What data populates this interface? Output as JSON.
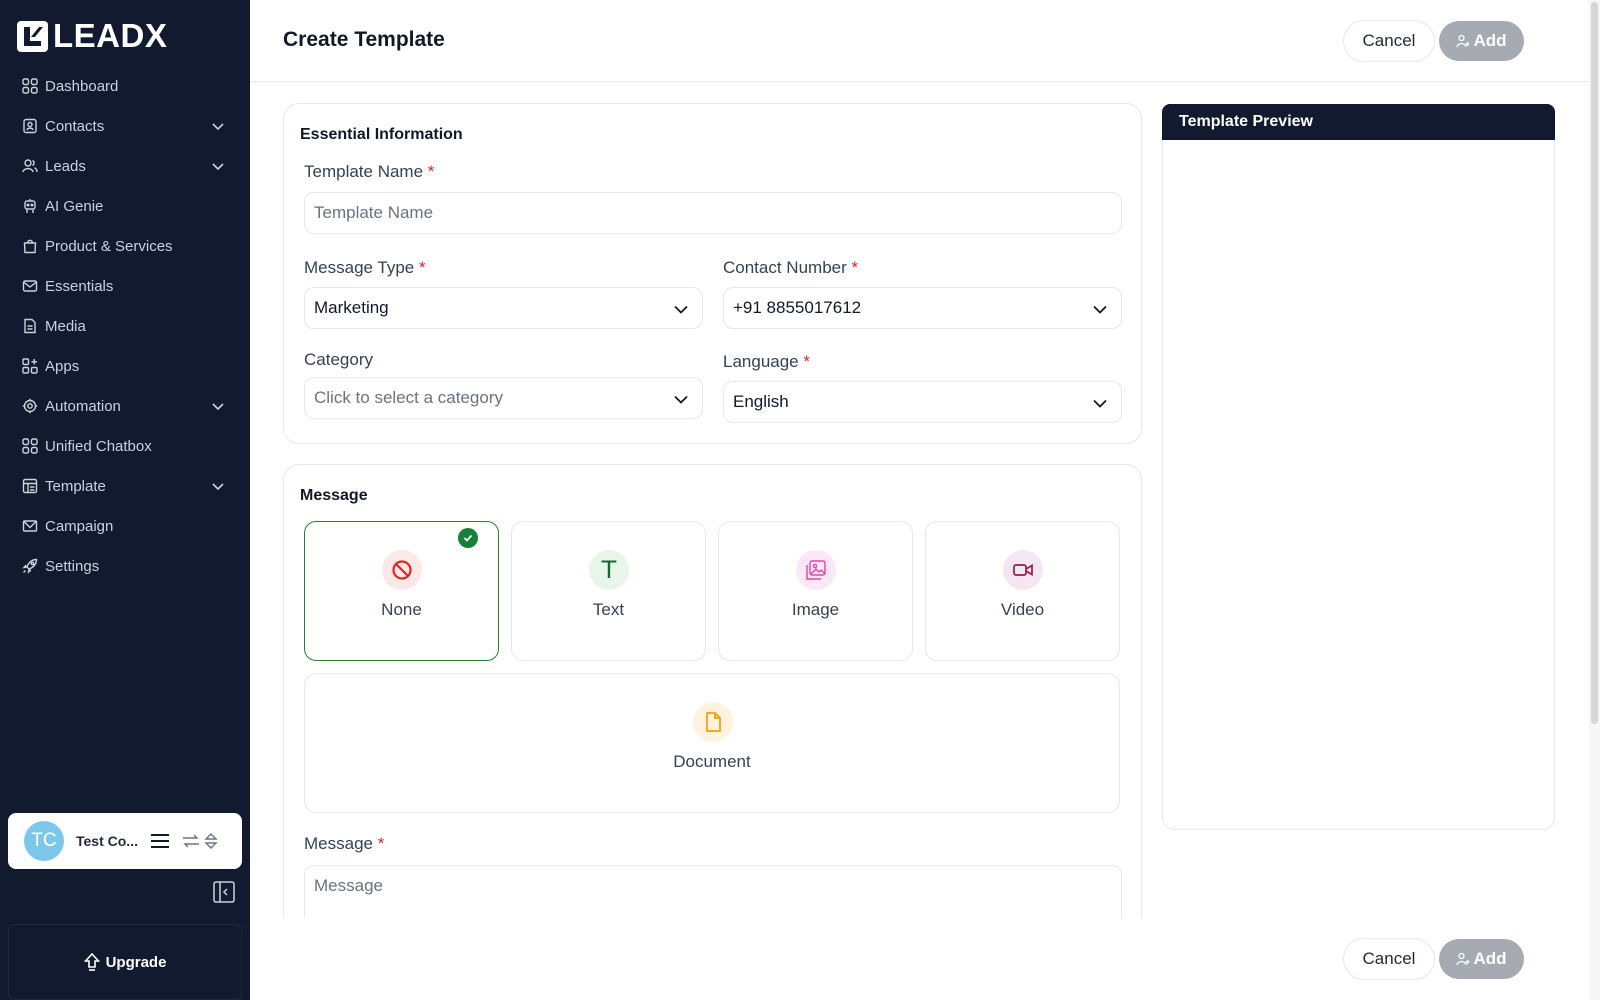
{
  "brand": {
    "name": "LEADX"
  },
  "sidebar": {
    "items": [
      {
        "label": "Dashboard",
        "icon": "grid-icon",
        "has_children": false
      },
      {
        "label": "Contacts",
        "icon": "contact-book-icon",
        "has_children": true
      },
      {
        "label": "Leads",
        "icon": "users-icon",
        "has_children": true
      },
      {
        "label": "AI Genie",
        "icon": "robot-icon",
        "has_children": false
      },
      {
        "label": "Product & Services",
        "icon": "shopping-bag-icon",
        "has_children": false
      },
      {
        "label": "Essentials",
        "icon": "mail-icon",
        "has_children": false
      },
      {
        "label": "Media",
        "icon": "file-icon",
        "has_children": false
      },
      {
        "label": "Apps",
        "icon": "apps-icon",
        "has_children": false
      },
      {
        "label": "Automation",
        "icon": "gear-bot-icon",
        "has_children": true
      },
      {
        "label": "Unified Chatbox",
        "icon": "grid-icon",
        "has_children": false
      },
      {
        "label": "Template",
        "icon": "template-icon",
        "has_children": true
      },
      {
        "label": "Campaign",
        "icon": "envelope-open-icon",
        "has_children": false
      },
      {
        "label": "Settings",
        "icon": "rocket-icon",
        "has_children": false
      }
    ],
    "user": {
      "initials": "TC",
      "name": "Test Co..."
    },
    "upgrade_label": "Upgrade"
  },
  "header": {
    "title": "Create Template",
    "cancel_label": "Cancel",
    "add_label": "Add"
  },
  "essential": {
    "title": "Essential Information",
    "template_name": {
      "label": "Template Name",
      "placeholder": "Template Name"
    },
    "message_type": {
      "label": "Message Type",
      "value": "Marketing"
    },
    "contact_number": {
      "label": "Contact Number",
      "value": "+91 8855017612"
    },
    "category": {
      "label": "Category",
      "placeholder": "Click to select a category"
    },
    "language": {
      "label": "Language",
      "value": "English"
    }
  },
  "message": {
    "title": "Message",
    "options": [
      {
        "label": "None",
        "selected": true
      },
      {
        "label": "Text",
        "selected": false
      },
      {
        "label": "Image",
        "selected": false
      },
      {
        "label": "Video",
        "selected": false
      },
      {
        "label": "Document",
        "selected": false
      }
    ],
    "message_field": {
      "label": "Message",
      "placeholder": "Message"
    }
  },
  "preview": {
    "title": "Template Preview"
  },
  "colors": {
    "sidebar_bg": "#111a2e",
    "accent_green": "#188038",
    "required": "#dc2626",
    "add_button_disabled": "#a6aab3"
  }
}
